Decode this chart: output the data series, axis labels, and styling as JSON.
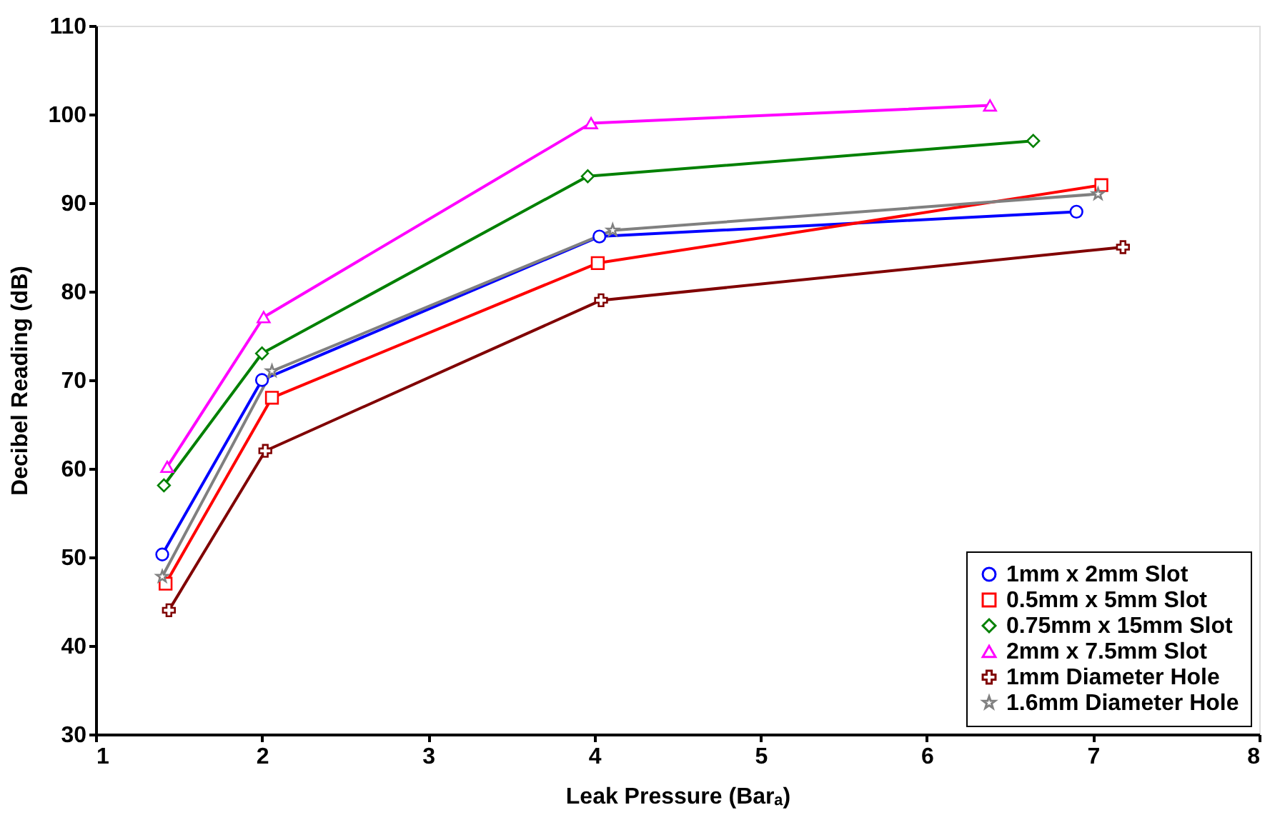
{
  "chart_data": {
    "type": "line",
    "xlabel": "Leak Pressure (Barₐ)",
    "ylabel": "Decibel Reading (dB)",
    "xlim": [
      1,
      8
    ],
    "xticks": [
      1,
      2,
      3,
      4,
      5,
      6,
      7,
      8
    ],
    "ylim": [
      30,
      110
    ],
    "yticks": [
      30,
      40,
      50,
      60,
      70,
      80,
      90,
      100,
      110
    ],
    "grid": false,
    "legend": "bottom right",
    "line_style": "solid",
    "series": [
      {
        "name": "1mm x 2mm Slot",
        "color": "#0000ff",
        "marker": "circle",
        "x": [
          1.4,
          2.0,
          4.03,
          6.9
        ],
        "values": [
          50.3,
          70,
          86.2,
          89
        ]
      },
      {
        "name": "0.5mm x 5mm Slot",
        "color": "#ff0000",
        "marker": "square",
        "x": [
          1.42,
          2.06,
          4.02,
          7.05
        ],
        "values": [
          47,
          68,
          83.2,
          92
        ]
      },
      {
        "name": "0.75mm x 15mm Slot",
        "color": "#008000",
        "marker": "diamond",
        "x": [
          1.41,
          2.0,
          3.96,
          6.64
        ],
        "values": [
          58.1,
          73,
          93,
          97
        ]
      },
      {
        "name": "2mm x 7.5mm Slot",
        "color": "#ff00ff",
        "marker": "triangle",
        "x": [
          1.43,
          2.01,
          3.98,
          6.38
        ],
        "values": [
          60.2,
          77.1,
          99,
          101
        ]
      },
      {
        "name": "1mm Diameter Hole",
        "color": "#800000",
        "marker": "cross",
        "x": [
          1.44,
          2.02,
          4.04,
          7.18
        ],
        "values": [
          44,
          62,
          79,
          85
        ]
      },
      {
        "name": "1.6mm Diameter Hole",
        "color": "#808080",
        "marker": "star",
        "x": [
          1.4,
          2.06,
          4.11,
          7.03
        ],
        "values": [
          47.8,
          71,
          86.9,
          91
        ]
      }
    ]
  }
}
